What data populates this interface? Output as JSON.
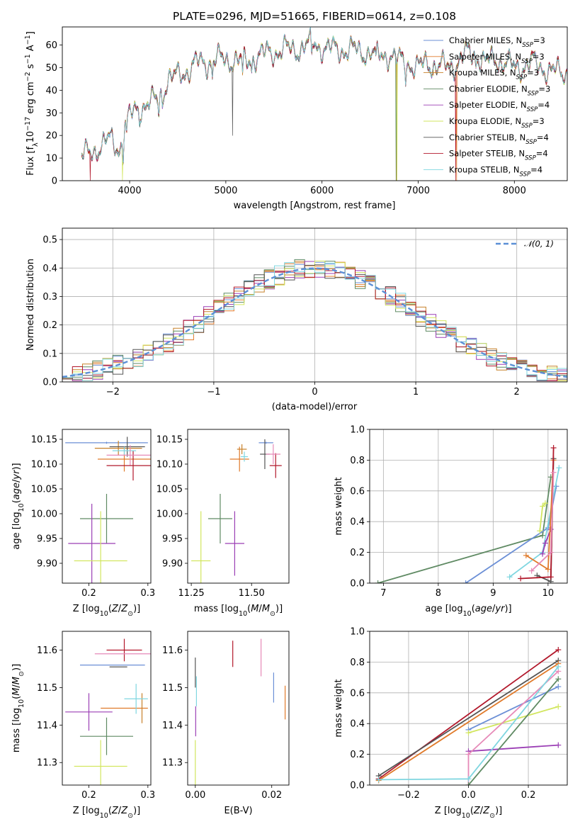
{
  "figure": {
    "title": "PLATE=0296, MJD=51665, FIBERID=0614, z=0.108"
  },
  "colors": {
    "Chabrier MILES": "#6b8fd6",
    "Salpeter MILES": "#e07a2a",
    "Kroupa MILES": "#c7812a",
    "Chabrier ELODIE": "#5f8a63",
    "Salpeter ELODIE": "#9b3fb5",
    "Kroupa ELODIE": "#d2e65f",
    "Chabrier STELIB": "#555555",
    "Salpeter STELIB": "#b2182b",
    "Kroupa STELIB": "#7fd6e0",
    "extra_pink": "#e68ab8",
    "normal": "#5b8fd6"
  },
  "chart_data": [
    {
      "type": "line",
      "title": "PLATE=0296, MJD=51665, FIBERID=0614, z=0.108",
      "xlabel": "wavelength [Angstrom, rest frame]",
      "ylabel_parts": [
        "Flux [f",
        "λ",
        "10",
        "−17",
        " erg cm",
        "−2",
        " s",
        "−1",
        " A",
        "−1",
        "]"
      ],
      "xlim": [
        3300,
        8550
      ],
      "ylim": [
        0,
        68
      ],
      "xticks": [
        4000,
        5000,
        6000,
        7000,
        8000
      ],
      "yticks": [
        0,
        10,
        20,
        30,
        40,
        50,
        60
      ],
      "grid": false,
      "legend_position": "top-right",
      "spectrum_anchors": [
        [
          3500,
          11
        ],
        [
          3600,
          12
        ],
        [
          3700,
          16
        ],
        [
          3800,
          18
        ],
        [
          3900,
          14
        ],
        [
          3950,
          25
        ],
        [
          4000,
          28
        ],
        [
          4100,
          33
        ],
        [
          4200,
          34
        ],
        [
          4300,
          36
        ],
        [
          4400,
          45
        ],
        [
          4500,
          46
        ],
        [
          4600,
          49
        ],
        [
          4700,
          52
        ],
        [
          4800,
          52
        ],
        [
          4900,
          54
        ],
        [
          5000,
          53
        ],
        [
          5100,
          54
        ],
        [
          5200,
          52
        ],
        [
          5300,
          55
        ],
        [
          5400,
          56
        ],
        [
          5500,
          57
        ],
        [
          5600,
          58
        ],
        [
          5700,
          58
        ],
        [
          5800,
          59
        ],
        [
          5900,
          61
        ],
        [
          6000,
          59
        ],
        [
          6100,
          58
        ],
        [
          6200,
          58
        ],
        [
          6300,
          58
        ],
        [
          6400,
          57
        ],
        [
          6500,
          57
        ],
        [
          6600,
          55
        ],
        [
          6700,
          56
        ],
        [
          6800,
          53
        ],
        [
          6900,
          52
        ],
        [
          7000,
          50
        ],
        [
          7100,
          52
        ],
        [
          7200,
          51
        ],
        [
          7300,
          50
        ],
        [
          7400,
          52
        ],
        [
          7500,
          56
        ],
        [
          7600,
          56
        ],
        [
          7700,
          52
        ],
        [
          7800,
          54
        ],
        [
          7900,
          52
        ],
        [
          8000,
          50
        ],
        [
          8100,
          51
        ],
        [
          8200,
          52
        ],
        [
          8300,
          50
        ],
        [
          8400,
          48
        ],
        [
          8550,
          48
        ]
      ],
      "series": [
        {
          "name": "Chabrier MILES",
          "nssp": "3"
        },
        {
          "name": "Salpeter MILES",
          "nssp": "3"
        },
        {
          "name": "Kroupa MILES",
          "nssp": "3"
        },
        {
          "name": "Chabrier ELODIE",
          "nssp": "3"
        },
        {
          "name": "Salpeter ELODIE",
          "nssp": "4"
        },
        {
          "name": "Kroupa ELODIE",
          "nssp": "3"
        },
        {
          "name": "Chabrier STELIB",
          "nssp": "4"
        },
        {
          "name": "Salpeter STELIB",
          "nssp": "4"
        },
        {
          "name": "Kroupa STELIB",
          "nssp": "4"
        }
      ],
      "legend_sub": "SSP"
    },
    {
      "type": "step",
      "xlabel": "(data-model)/error",
      "ylabel": "Normed distribution",
      "xlim": [
        -2.5,
        2.5
      ],
      "ylim": [
        0,
        0.54
      ],
      "xticks": [
        -2,
        -1,
        0,
        1,
        2
      ],
      "yticks": [
        0.0,
        0.1,
        0.2,
        0.3,
        0.4,
        0.5
      ],
      "grid": true,
      "legend_position": "top-right",
      "legend_label": "𝒩(0, 1)",
      "bin_width": 0.1,
      "bin_start": -2.5
    },
    {
      "type": "errorbar",
      "xlabel": "Z [log10(Z/Z☉)]",
      "ylabel": "age  [log10(age/yr)]",
      "xlim": [
        0.155,
        0.305
      ],
      "ylim": [
        9.86,
        10.17
      ],
      "xticks": [
        0.2,
        0.3
      ],
      "yticks": [
        9.9,
        9.95,
        10.0,
        10.05,
        10.1,
        10.15
      ],
      "points": [
        {
          "series": "Chabrier MILES",
          "x": 0.23,
          "y": 10.143,
          "xerr": 0.07,
          "yerr": 0.002
        },
        {
          "series": "Salpeter MILES",
          "x": 0.26,
          "y": 10.11,
          "xerr": 0.045,
          "yerr": 0.025
        },
        {
          "series": "Kroupa MILES",
          "x": 0.25,
          "y": 10.132,
          "xerr": 0.04,
          "yerr": 0.015
        },
        {
          "series": "Chabrier ELODIE",
          "x": 0.23,
          "y": 9.99,
          "xerr": 0.045,
          "yerr": 0.05
        },
        {
          "series": "Salpeter ELODIE",
          "x": 0.205,
          "y": 9.94,
          "xerr": 0.04,
          "yerr": 0.08
        },
        {
          "series": "Kroupa ELODIE",
          "x": 0.22,
          "y": 9.905,
          "xerr": 0.045,
          "yerr": 0.1
        },
        {
          "series": "Chabrier STELIB",
          "x": 0.265,
          "y": 10.135,
          "xerr": 0.03,
          "yerr": 0.02
        },
        {
          "series": "Salpeter STELIB",
          "x": 0.275,
          "y": 10.097,
          "xerr": 0.045,
          "yerr": 0.03
        },
        {
          "series": "Kroupa STELIB",
          "x": 0.26,
          "y": 10.127,
          "xerr": 0.02,
          "yerr": 0.008
        },
        {
          "series": "extra_pink",
          "x": 0.27,
          "y": 10.118,
          "xerr": 0.04,
          "yerr": 0.02
        }
      ]
    },
    {
      "type": "errorbar",
      "xlabel": "mass [log10(M/M☉)]",
      "ylabel": "",
      "xlim": [
        11.235,
        11.655
      ],
      "ylim": [
        9.86,
        10.17
      ],
      "xticks": [
        11.25,
        11.5
      ],
      "yticks": [
        9.9,
        9.95,
        10.0,
        10.05,
        10.1,
        10.15
      ],
      "points": [
        {
          "series": "Chabrier MILES",
          "x": 11.56,
          "y": 10.143,
          "xerr": 0.03,
          "yerr": 0.002
        },
        {
          "series": "Salpeter MILES",
          "x": 11.45,
          "y": 10.11,
          "xerr": 0.04,
          "yerr": 0.025
        },
        {
          "series": "Kroupa MILES",
          "x": 11.46,
          "y": 10.13,
          "xerr": 0.02,
          "yerr": 0.01
        },
        {
          "series": "Chabrier ELODIE",
          "x": 11.37,
          "y": 9.99,
          "xerr": 0.05,
          "yerr": 0.05
        },
        {
          "series": "Salpeter ELODIE",
          "x": 11.43,
          "y": 9.94,
          "xerr": 0.04,
          "yerr": 0.065
        },
        {
          "series": "Kroupa ELODIE",
          "x": 11.29,
          "y": 9.905,
          "xerr": 0.04,
          "yerr": 0.1
        },
        {
          "series": "Chabrier STELIB",
          "x": 11.555,
          "y": 10.12,
          "xerr": 0.02,
          "yerr": 0.03
        },
        {
          "series": "Salpeter STELIB",
          "x": 11.6,
          "y": 10.097,
          "xerr": 0.025,
          "yerr": 0.025
        },
        {
          "series": "Kroupa STELIB",
          "x": 11.47,
          "y": 10.115,
          "xerr": 0.015,
          "yerr": 0.01
        },
        {
          "series": "extra_pink",
          "x": 11.59,
          "y": 10.12,
          "xerr": 0.03,
          "yerr": 0.02
        }
      ]
    },
    {
      "type": "line",
      "xlabel": "age  [log10(age/yr)]",
      "ylabel": "mass weight",
      "xlim": [
        6.75,
        10.35
      ],
      "ylim": [
        0,
        1.0
      ],
      "xticks": [
        7,
        8,
        9,
        10
      ],
      "yticks": [
        0.0,
        0.2,
        0.4,
        0.6,
        0.8,
        1.0
      ],
      "grid": true,
      "series": [
        {
          "name": "Chabrier ELODIE",
          "points": [
            [
              6.9,
              0.0
            ],
            [
              9.9,
              0.31
            ],
            [
              10.05,
              0.69
            ]
          ]
        },
        {
          "name": "Chabrier MILES",
          "points": [
            [
              8.5,
              0.0
            ],
            [
              10.0,
              0.36
            ],
            [
              10.15,
              0.63
            ]
          ]
        },
        {
          "name": "Kroupa STELIB",
          "points": [
            [
              9.3,
              0.04
            ],
            [
              9.9,
              0.2
            ],
            [
              10.2,
              0.75
            ]
          ]
        },
        {
          "name": "Salpeter ELODIE",
          "points": [
            [
              9.9,
              0.19
            ],
            [
              9.95,
              0.26
            ],
            [
              10.05,
              0.35
            ]
          ]
        },
        {
          "name": "Kroupa ELODIE",
          "points": [
            [
              9.85,
              0.34
            ],
            [
              9.9,
              0.5
            ],
            [
              9.95,
              0.52
            ]
          ]
        },
        {
          "name": "Salpeter MILES",
          "points": [
            [
              9.6,
              0.18
            ],
            [
              10.0,
              0.09
            ],
            [
              10.1,
              0.8
            ]
          ]
        },
        {
          "name": "Chabrier STELIB",
          "points": [
            [
              9.8,
              0.05
            ],
            [
              10.05,
              0.01
            ],
            [
              10.1,
              0.81
            ]
          ]
        },
        {
          "name": "Salpeter STELIB",
          "points": [
            [
              9.5,
              0.03
            ],
            [
              10.05,
              0.04
            ],
            [
              10.1,
              0.88
            ]
          ]
        },
        {
          "name": "extra_pink",
          "points": [
            [
              9.7,
              0.08
            ],
            [
              10.05,
              0.2
            ],
            [
              10.1,
              0.72
            ]
          ]
        }
      ]
    },
    {
      "type": "errorbar",
      "xlabel": "Z [log10(Z/Z☉)]",
      "ylabel": "mass [log10(M/M☉)]",
      "xlim": [
        0.155,
        0.305
      ],
      "ylim": [
        11.24,
        11.65
      ],
      "xticks": [
        0.2,
        0.3
      ],
      "yticks": [
        11.3,
        11.4,
        11.5,
        11.6
      ],
      "points": [
        {
          "series": "Chabrier MILES",
          "x": 0.24,
          "y": 11.56,
          "xerr": 0.055,
          "yerr": 0.0
        },
        {
          "series": "Salpeter MILES",
          "x": 0.26,
          "y": 11.445,
          "xerr": 0.04,
          "yerr": 0.0
        },
        {
          "series": "Kroupa MILES",
          "x": 0.29,
          "y": 11.445,
          "xerr": 0.0,
          "yerr": 0.04
        },
        {
          "series": "Chabrier ELODIE",
          "x": 0.23,
          "y": 11.37,
          "xerr": 0.045,
          "yerr": 0.05
        },
        {
          "series": "Salpeter ELODIE",
          "x": 0.2,
          "y": 11.435,
          "xerr": 0.04,
          "yerr": 0.05
        },
        {
          "series": "Kroupa ELODIE",
          "x": 0.22,
          "y": 11.29,
          "xerr": 0.045,
          "yerr": 0.07
        },
        {
          "series": "Chabrier STELIB",
          "x": 0.25,
          "y": 11.555,
          "xerr": 0.015,
          "yerr": 0.0
        },
        {
          "series": "Salpeter STELIB",
          "x": 0.26,
          "y": 11.6,
          "xerr": 0.03,
          "yerr": 0.03
        },
        {
          "series": "Kroupa STELIB",
          "x": 0.28,
          "y": 11.47,
          "xerr": 0.02,
          "yerr": 0.04
        },
        {
          "series": "extra_pink",
          "x": 0.26,
          "y": 11.59,
          "xerr": 0.05,
          "yerr": 0.0
        }
      ]
    },
    {
      "type": "errorbar",
      "xlabel": "E(B-V)",
      "ylabel": "",
      "xlim": [
        -0.002,
        0.0245
      ],
      "ylim": [
        11.24,
        11.65
      ],
      "xticks": [
        0.0,
        0.02
      ],
      "yticks": [
        11.3,
        11.4,
        11.5,
        11.6
      ],
      "points": [
        {
          "series": "Chabrier MILES",
          "x": 0.0205,
          "y": 11.5,
          "xerr": 0.0,
          "yerr": 0.04
        },
        {
          "series": "Salpeter MILES",
          "x": 0.0235,
          "y": 11.46,
          "xerr": 0.0,
          "yerr": 0.045
        },
        {
          "series": "Chabrier STELIB",
          "x": 0.0,
          "y": 11.54,
          "xerr": 0.0,
          "yerr": 0.04
        },
        {
          "series": "Kroupa STELIB",
          "x": 0.0003,
          "y": 11.49,
          "xerr": 0.0,
          "yerr": 0.04
        },
        {
          "series": "Salpeter ELODIE",
          "x": 0.0001,
          "y": 11.41,
          "xerr": 0.0,
          "yerr": 0.04
        },
        {
          "series": "Kroupa ELODIE",
          "x": 0.0,
          "y": 11.3,
          "xerr": 0.0,
          "yerr": 0.06
        },
        {
          "series": "Salpeter STELIB",
          "x": 0.0098,
          "y": 11.59,
          "xerr": 0.0,
          "yerr": 0.035
        },
        {
          "series": "extra_pink",
          "x": 0.0172,
          "y": 11.58,
          "xerr": 0.0,
          "yerr": 0.05
        }
      ]
    },
    {
      "type": "line",
      "xlabel": "Z [log10(Z/Z☉)]",
      "ylabel": "mass weight",
      "xlim": [
        -0.33,
        0.33
      ],
      "ylim": [
        0,
        1.0
      ],
      "xticks": [
        -0.2,
        0.0,
        0.2
      ],
      "yticks": [
        0.0,
        0.2,
        0.4,
        0.6,
        0.8,
        1.0
      ],
      "grid": true,
      "series": [
        {
          "name": "Salpeter STELIB",
          "points": [
            [
              -0.3,
              0.04
            ],
            [
              0.3,
              0.88
            ]
          ]
        },
        {
          "name": "Chabrier STELIB",
          "points": [
            [
              -0.3,
              0.06
            ],
            [
              0.3,
              0.81
            ]
          ]
        },
        {
          "name": "Salpeter MILES",
          "points": [
            [
              -0.3,
              0.03
            ],
            [
              0.3,
              0.79
            ]
          ]
        },
        {
          "name": "Chabrier MILES",
          "points": [
            [
              0.0,
              0.36
            ],
            [
              0.3,
              0.64
            ]
          ]
        },
        {
          "name": "Kroupa ELODIE",
          "points": [
            [
              0.0,
              0.34
            ],
            [
              0.3,
              0.51
            ]
          ]
        },
        {
          "name": "Salpeter ELODIE",
          "points": [
            [
              0.0,
              0.22
            ],
            [
              0.3,
              0.26
            ]
          ]
        },
        {
          "name": "extra_pink",
          "points": [
            [
              0.0,
              0.0
            ],
            [
              0.0,
              0.2
            ],
            [
              0.3,
              0.74
            ]
          ]
        },
        {
          "name": "Chabrier ELODIE",
          "points": [
            [
              0.0,
              0.0
            ],
            [
              0.3,
              0.69
            ]
          ]
        },
        {
          "name": "Kroupa STELIB",
          "points": [
            [
              -0.3,
              0.035
            ],
            [
              0.0,
              0.04
            ],
            [
              0.3,
              0.77
            ]
          ]
        }
      ]
    }
  ]
}
